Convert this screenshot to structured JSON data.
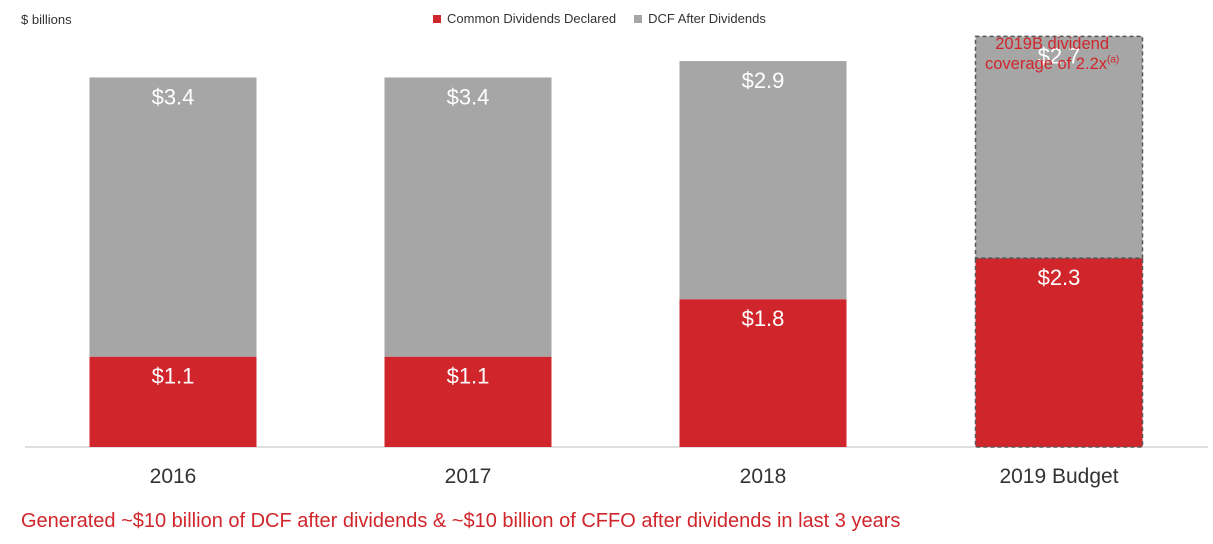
{
  "unit_label": "$ billions",
  "legend": {
    "dividends": "Common Dividends Declared",
    "dcf": "DCF After Dividends"
  },
  "callout": {
    "line1": "2019B dividend",
    "line2": "coverage of 2.2x",
    "superscript": "(a)"
  },
  "footer": "Generated ~$10 billion of DCF after dividends & ~$10 billion of CFFO after dividends in last 3 years",
  "colors": {
    "dividends": "#d0262b",
    "dcf": "#a6a6a6",
    "accent_text": "#d0262b"
  },
  "chart_data": {
    "type": "bar",
    "stacked": true,
    "title": "",
    "ylabel": "$ billions",
    "categories": [
      "2016",
      "2017",
      "2018",
      "2019 Budget"
    ],
    "series": [
      {
        "name": "Common Dividends Declared",
        "values": [
          1.1,
          1.1,
          1.8,
          2.3
        ],
        "labels": [
          "$1.1",
          "$1.1",
          "$1.8",
          "$2.3"
        ]
      },
      {
        "name": "DCF After Dividends",
        "values": [
          3.4,
          3.4,
          2.9,
          2.7
        ],
        "labels": [
          "$3.4",
          "$3.4",
          "$2.9",
          "$2.7"
        ]
      }
    ],
    "ylim": [
      0,
      5.2
    ],
    "grid": false,
    "legend_position": "top-center",
    "budget_category": "2019 Budget"
  }
}
